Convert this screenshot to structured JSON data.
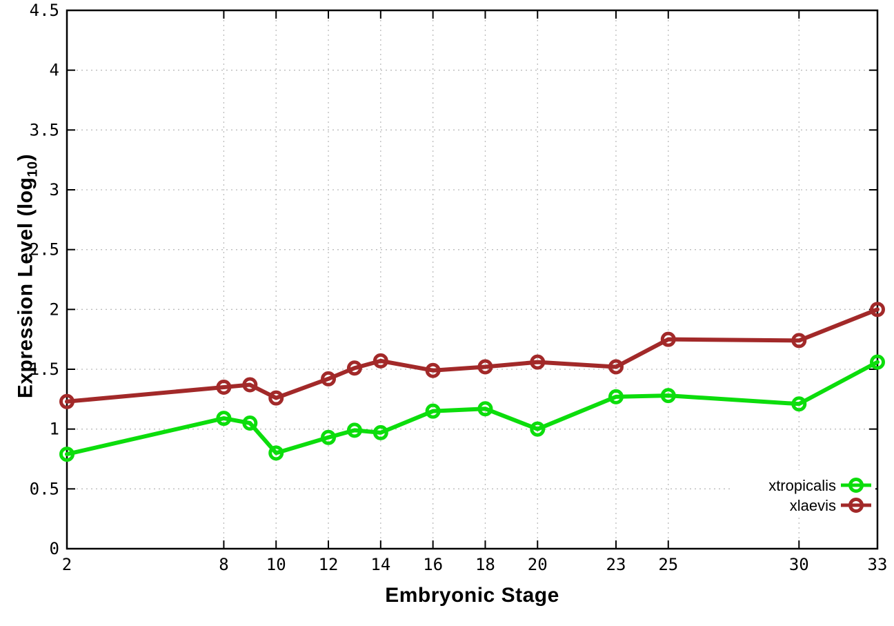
{
  "page": {
    "background": "#ffffff"
  },
  "chart_data": {
    "type": "line",
    "title": "",
    "xlabel": "Embryonic Stage",
    "ylabel": "Expression Level (log10)",
    "ylabel_parts": {
      "main": "Expression Level (log",
      "sub": "10",
      "close": ")"
    },
    "xlim": [
      2,
      33
    ],
    "ylim": [
      0,
      4.5
    ],
    "grid": true,
    "grid_color": "#bbbbbb",
    "axis_color": "#000000",
    "x": [
      2,
      8,
      9,
      10,
      12,
      13,
      14,
      16,
      18,
      20,
      23,
      25,
      30,
      33
    ],
    "x_ticks": [
      2,
      8,
      10,
      12,
      14,
      16,
      18,
      20,
      23,
      25,
      30,
      33
    ],
    "x_tick_labels": [
      "2",
      "8",
      "10",
      "12",
      "14",
      "16",
      "18",
      "20",
      "23",
      "25",
      "30",
      "33"
    ],
    "y_ticks": [
      0,
      0.5,
      1,
      1.5,
      2,
      2.5,
      3,
      3.5,
      4,
      4.5
    ],
    "y_tick_labels": [
      "0",
      "0.5",
      "1",
      "1.5",
      "2",
      "2.5",
      "3",
      "3.5",
      "4",
      "4.5"
    ],
    "legend_position": "bottom-right",
    "series": [
      {
        "name": "xtropicalis",
        "color": "#0cdd0c",
        "values": [
          0.79,
          1.09,
          1.05,
          0.8,
          0.93,
          0.99,
          0.97,
          1.15,
          1.17,
          1.0,
          1.27,
          1.28,
          1.21,
          1.56
        ]
      },
      {
        "name": "xlaevis",
        "color": "#a22929",
        "values": [
          1.23,
          1.35,
          1.37,
          1.26,
          1.42,
          1.51,
          1.57,
          1.49,
          1.52,
          1.56,
          1.52,
          1.75,
          1.74,
          2.0
        ]
      }
    ]
  }
}
